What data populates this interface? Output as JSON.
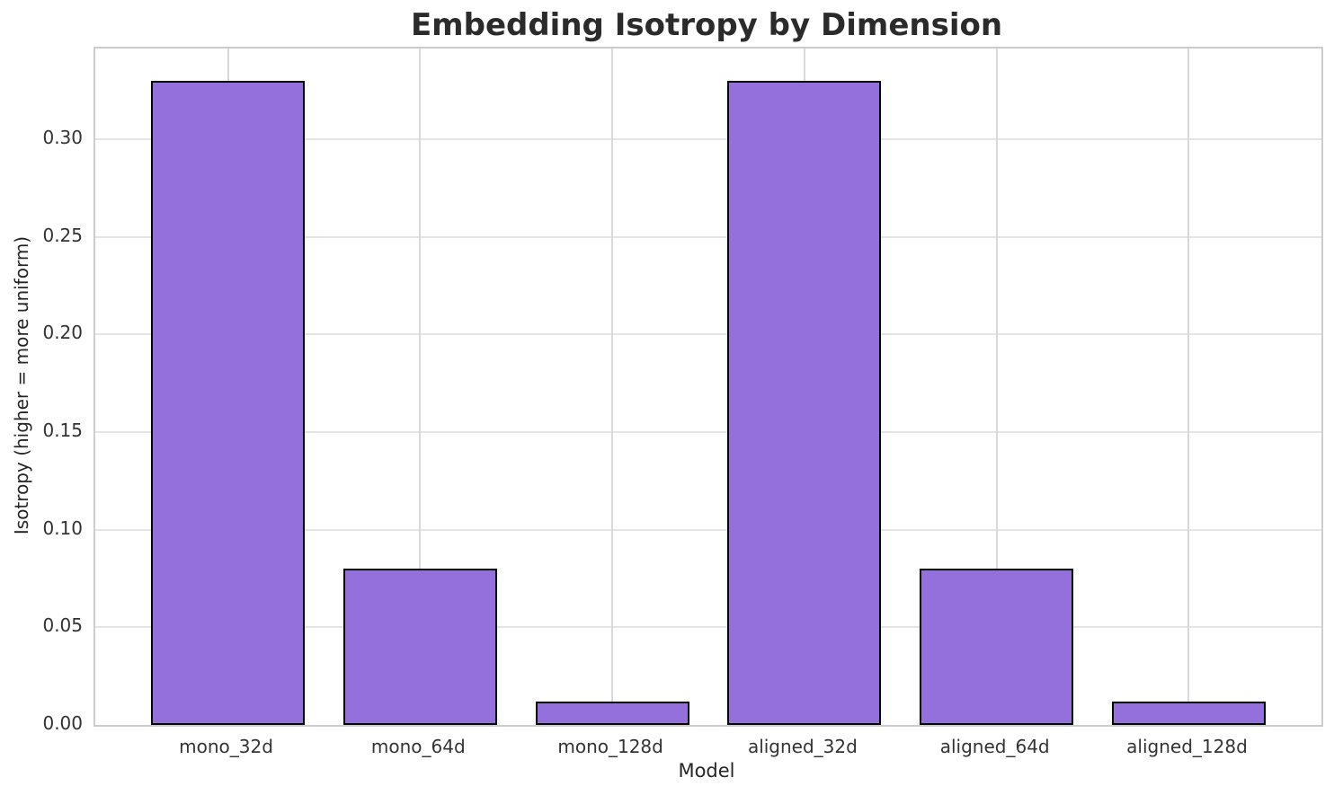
{
  "chart_data": {
    "type": "bar",
    "title": "Embedding Isotropy by Dimension",
    "xlabel": "Model",
    "ylabel": "Isotropy (higher = more uniform)",
    "categories": [
      "mono_32d",
      "mono_64d",
      "mono_128d",
      "aligned_32d",
      "aligned_64d",
      "aligned_128d"
    ],
    "values": [
      0.33,
      0.08,
      0.012,
      0.33,
      0.08,
      0.012
    ],
    "yticks": [
      0.0,
      0.05,
      0.1,
      0.15,
      0.2,
      0.25,
      0.3
    ],
    "ytick_labels": [
      "0.00",
      "0.05",
      "0.10",
      "0.15",
      "0.20",
      "0.25",
      "0.30"
    ],
    "ylim": [
      0,
      0.3465
    ],
    "grid": true,
    "legend": "none",
    "bar_color": "#9370db",
    "bar_edge_color": "#000000",
    "grid_color": "#dcdcdc",
    "background_color": "#ffffff"
  }
}
